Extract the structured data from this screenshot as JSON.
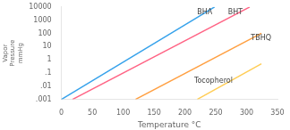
{
  "chart_data": {
    "type": "line",
    "xlabel": "Temperature °C",
    "ylabel": "Vapor\nPressure\nmmHg",
    "log": "y",
    "grid": false,
    "xlim": [
      0,
      350
    ],
    "ylim": [
      0.001,
      10000
    ],
    "xticks": [
      0,
      50,
      100,
      150,
      200,
      250,
      300,
      350
    ],
    "yticks": [
      {
        "value": 0.001,
        "label": ".001"
      },
      {
        "value": 0.01,
        "label": ".01"
      },
      {
        "value": 0.1,
        "label": ".1"
      },
      1,
      10,
      100,
      1000,
      10000
    ],
    "series": [
      {
        "name": "BHA",
        "x": [
          0,
          248
        ],
        "values": [
          0.001,
          10000
        ]
      },
      {
        "name": "BHT",
        "x": [
          18,
          305
        ],
        "values": [
          0.001,
          10000
        ]
      },
      {
        "name": "TBHQ",
        "x": [
          120,
          324
        ],
        "values": [
          0.001,
          100
        ]
      },
      {
        "name": "Tocopherol",
        "x": [
          220,
          324
        ],
        "values": [
          0.001,
          0.5011872336272722
        ]
      }
    ],
    "annotations": [
      {
        "text": "BHA",
        "x": 220,
        "y": 3981.0717055349733
      },
      {
        "text": "BHT",
        "x": 270,
        "y": 3981.0717055349733
      },
      {
        "text": "TBHQ",
        "x": 307,
        "y": 39.810717055349734
      },
      {
        "text": "Tocopherol",
        "x": 215,
        "y": 0.025118864315095794
      }
    ]
  }
}
